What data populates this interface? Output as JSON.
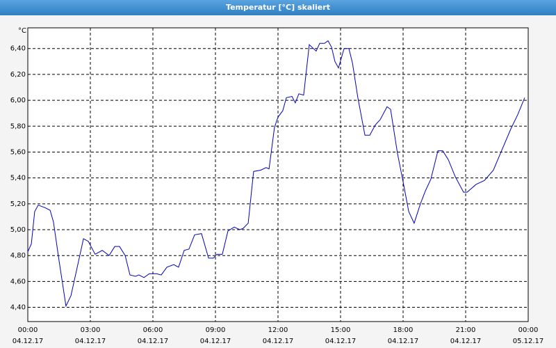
{
  "chart_data": {
    "type": "line",
    "title": "Temperatur [°C] skaliert",
    "y_label": "°C",
    "xlim": [
      0,
      24
    ],
    "ylim": [
      4.29,
      6.56
    ],
    "xticks": [
      {
        "value": 0,
        "label": [
          "00:00",
          "04.12.17"
        ]
      },
      {
        "value": 3,
        "label": [
          "03:00",
          "04.12.17"
        ]
      },
      {
        "value": 6,
        "label": [
          "06:00",
          "04.12.17"
        ]
      },
      {
        "value": 9,
        "label": [
          "09:00",
          "04.12.17"
        ]
      },
      {
        "value": 12,
        "label": [
          "12:00",
          "04.12.17"
        ]
      },
      {
        "value": 15,
        "label": [
          "15:00",
          "04.12.17"
        ]
      },
      {
        "value": 18,
        "label": [
          "18:00",
          "04.12.17"
        ]
      },
      {
        "value": 21,
        "label": [
          "21:00",
          "04.12.17"
        ]
      },
      {
        "value": 24,
        "label": [
          "00:00",
          "05.12.17"
        ]
      }
    ],
    "yticks": [
      {
        "value": 4.4,
        "label": "4,40"
      },
      {
        "value": 4.6,
        "label": "4,60"
      },
      {
        "value": 4.8,
        "label": "4,80"
      },
      {
        "value": 5.0,
        "label": "5,00"
      },
      {
        "value": 5.2,
        "label": "5,20"
      },
      {
        "value": 5.4,
        "label": "5,40"
      },
      {
        "value": 5.6,
        "label": "5,60"
      },
      {
        "value": 5.8,
        "label": "5,80"
      },
      {
        "value": 6.0,
        "label": "6,00"
      },
      {
        "value": 6.2,
        "label": "6,20"
      },
      {
        "value": 6.4,
        "label": "6,40"
      }
    ],
    "grid": true,
    "series": [
      {
        "color": "#0000c0",
        "x": [
          0,
          0.17,
          0.33,
          0.5,
          0.83,
          1.07,
          1.23,
          1.5,
          1.83,
          2.07,
          2.33,
          2.67,
          2.9,
          3.23,
          3.57,
          3.9,
          4.17,
          4.4,
          4.67,
          4.9,
          5.17,
          5.33,
          5.57,
          5.83,
          6.17,
          6.4,
          6.67,
          7,
          7.23,
          7.5,
          7.73,
          8,
          8.33,
          8.67,
          8.9,
          9.07,
          9.33,
          9.6,
          9.9,
          10.17,
          10.33,
          10.57,
          10.83,
          11.17,
          11.43,
          11.57,
          11.83,
          12,
          12.23,
          12.4,
          12.67,
          12.83,
          13,
          13.23,
          13.5,
          13.83,
          14,
          14.23,
          14.4,
          14.57,
          14.73,
          14.9,
          15.17,
          15.4,
          15.57,
          15.83,
          16.17,
          16.4,
          16.67,
          16.9,
          17.23,
          17.4,
          17.73,
          18,
          18.27,
          18.53,
          18.83,
          19.07,
          19.33,
          19.67,
          19.9,
          20.17,
          20.5,
          20.9,
          21.07,
          21.5,
          21.9,
          22.33,
          22.67,
          23.17,
          23.5,
          23.83
        ],
        "values": [
          4.83,
          4.89,
          5.14,
          5.19,
          5.17,
          5.15,
          5.06,
          4.76,
          4.41,
          4.49,
          4.68,
          4.93,
          4.91,
          4.81,
          4.84,
          4.8,
          4.87,
          4.87,
          4.8,
          4.65,
          4.64,
          4.65,
          4.63,
          4.66,
          4.66,
          4.65,
          4.71,
          4.73,
          4.71,
          4.84,
          4.85,
          4.96,
          4.97,
          4.78,
          4.78,
          4.81,
          4.81,
          4.99,
          5.02,
          5.0,
          5.01,
          5.05,
          5.45,
          5.46,
          5.48,
          5.47,
          5.79,
          5.87,
          5.92,
          6.02,
          6.03,
          5.98,
          6.05,
          6.04,
          6.43,
          6.38,
          6.44,
          6.44,
          6.46,
          6.41,
          6.3,
          6.25,
          6.4,
          6.4,
          6.29,
          6.02,
          5.73,
          5.73,
          5.81,
          5.85,
          5.95,
          5.93,
          5.59,
          5.37,
          5.14,
          5.05,
          5.2,
          5.3,
          5.39,
          5.61,
          5.61,
          5.54,
          5.41,
          5.29,
          5.29,
          5.35,
          5.38,
          5.46,
          5.59,
          5.78,
          5.89,
          6.02
        ]
      }
    ]
  }
}
